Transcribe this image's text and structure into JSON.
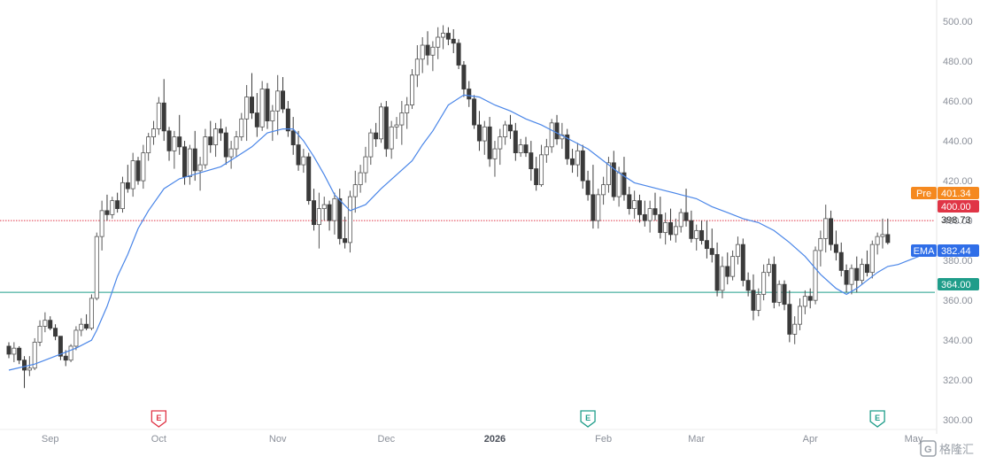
{
  "chart_data": {
    "type": "candlestick",
    "title": "",
    "xlabel": "",
    "ylabel": "",
    "ylim": [
      293,
      508
    ],
    "y_ticks": [
      300,
      320,
      340,
      360,
      380,
      400,
      420,
      440,
      460,
      480,
      500
    ],
    "y_tick_labels": [
      "300.00",
      "320.00",
      "340.00",
      "360.00",
      "380.00",
      "400.00",
      "420.00",
      "440.00",
      "460.00",
      "480.00",
      "500.00"
    ],
    "x_labels": [
      {
        "label": "Sep",
        "index": 8,
        "bold": false
      },
      {
        "label": "Oct",
        "index": 29,
        "bold": false
      },
      {
        "label": "Nov",
        "index": 52,
        "bold": false
      },
      {
        "label": "Dec",
        "index": 73,
        "bold": false
      },
      {
        "label": "2026",
        "index": 94,
        "bold": true
      },
      {
        "label": "Feb",
        "index": 115,
        "bold": false
      },
      {
        "label": "Mar",
        "index": 133,
        "bold": false
      },
      {
        "label": "Apr",
        "index": 155,
        "bold": false
      },
      {
        "label": "May",
        "index": 175,
        "bold": false
      }
    ],
    "candles": [
      [
        337,
        339,
        331,
        333
      ],
      [
        333,
        339,
        329,
        336
      ],
      [
        336,
        337,
        328,
        330
      ],
      [
        330,
        332,
        316,
        325
      ],
      [
        325,
        332,
        322,
        326
      ],
      [
        326,
        341,
        325,
        339
      ],
      [
        339,
        350,
        337,
        347
      ],
      [
        347,
        354,
        344,
        350
      ],
      [
        350,
        352,
        345,
        346
      ],
      [
        346,
        348,
        340,
        342
      ],
      [
        342,
        342,
        330,
        332
      ],
      [
        332,
        335,
        327,
        330
      ],
      [
        330,
        338,
        329,
        337
      ],
      [
        337,
        347,
        335,
        345
      ],
      [
        345,
        351,
        342,
        348
      ],
      [
        348,
        353,
        345,
        346
      ],
      [
        346,
        363,
        345,
        361
      ],
      [
        361,
        394,
        360,
        392
      ],
      [
        392,
        410,
        385,
        405
      ],
      [
        405,
        413,
        400,
        403
      ],
      [
        403,
        412,
        401,
        410
      ],
      [
        410,
        414,
        404,
        406
      ],
      [
        406,
        422,
        404,
        419
      ],
      [
        419,
        428,
        414,
        416
      ],
      [
        416,
        434,
        412,
        430
      ],
      [
        430,
        432,
        418,
        420
      ],
      [
        420,
        438,
        416,
        434
      ],
      [
        434,
        444,
        430,
        442
      ],
      [
        442,
        450,
        438,
        446
      ],
      [
        446,
        462,
        443,
        459
      ],
      [
        459,
        471,
        440,
        445
      ],
      [
        445,
        447,
        430,
        435
      ],
      [
        435,
        445,
        426,
        442
      ],
      [
        442,
        453,
        433,
        437
      ],
      [
        437,
        440,
        418,
        422
      ],
      [
        422,
        438,
        418,
        436
      ],
      [
        436,
        445,
        420,
        425
      ],
      [
        425,
        432,
        415,
        428
      ],
      [
        428,
        446,
        426,
        442
      ],
      [
        442,
        450,
        434,
        438
      ],
      [
        438,
        449,
        432,
        446
      ],
      [
        446,
        451,
        440,
        444
      ],
      [
        444,
        447,
        428,
        432
      ],
      [
        432,
        440,
        426,
        436
      ],
      [
        436,
        445,
        432,
        442
      ],
      [
        442,
        454,
        440,
        451
      ],
      [
        451,
        468,
        440,
        462
      ],
      [
        462,
        474,
        451,
        454
      ],
      [
        454,
        464,
        442,
        447
      ],
      [
        447,
        470,
        445,
        466
      ],
      [
        466,
        469,
        446,
        450
      ],
      [
        450,
        458,
        440,
        455
      ],
      [
        455,
        473,
        443,
        465
      ],
      [
        465,
        472,
        454,
        456
      ],
      [
        456,
        460,
        442,
        445
      ],
      [
        445,
        452,
        433,
        438
      ],
      [
        438,
        445,
        425,
        428
      ],
      [
        428,
        436,
        424,
        432
      ],
      [
        432,
        434,
        408,
        410
      ],
      [
        410,
        416,
        395,
        398
      ],
      [
        398,
        414,
        386,
        406
      ],
      [
        406,
        412,
        400,
        408
      ],
      [
        408,
        410,
        395,
        400
      ],
      [
        400,
        414,
        393,
        411
      ],
      [
        411,
        416,
        388,
        391
      ],
      [
        391,
        402,
        386,
        389
      ],
      [
        389,
        415,
        384,
        412
      ],
      [
        412,
        425,
        404,
        418
      ],
      [
        418,
        428,
        414,
        424
      ],
      [
        424,
        437,
        419,
        432
      ],
      [
        432,
        446,
        428,
        444
      ],
      [
        444,
        449,
        437,
        441
      ],
      [
        441,
        459,
        439,
        457
      ],
      [
        457,
        460,
        432,
        436
      ],
      [
        436,
        450,
        431,
        447
      ],
      [
        447,
        452,
        441,
        448
      ],
      [
        448,
        460,
        438,
        454
      ],
      [
        454,
        462,
        446,
        458
      ],
      [
        458,
        476,
        456,
        473
      ],
      [
        473,
        488,
        467,
        481
      ],
      [
        481,
        492,
        474,
        488
      ],
      [
        488,
        495,
        478,
        483
      ],
      [
        483,
        490,
        475,
        487
      ],
      [
        487,
        497,
        481,
        492
      ],
      [
        492,
        498,
        486,
        494
      ],
      [
        494,
        497,
        488,
        491
      ],
      [
        491,
        496,
        484,
        489
      ],
      [
        489,
        491,
        476,
        478
      ],
      [
        478,
        480,
        462,
        466
      ],
      [
        466,
        470,
        457,
        461
      ],
      [
        461,
        463,
        446,
        448
      ],
      [
        448,
        455,
        435,
        440
      ],
      [
        440,
        450,
        433,
        447
      ],
      [
        447,
        452,
        427,
        431
      ],
      [
        431,
        440,
        422,
        436
      ],
      [
        436,
        446,
        428,
        442
      ],
      [
        442,
        450,
        438,
        448
      ],
      [
        448,
        453,
        441,
        445
      ],
      [
        445,
        449,
        430,
        434
      ],
      [
        434,
        441,
        432,
        438
      ],
      [
        438,
        442,
        432,
        434
      ],
      [
        434,
        440,
        420,
        426
      ],
      [
        426,
        432,
        415,
        418
      ],
      [
        418,
        438,
        417,
        433
      ],
      [
        433,
        441,
        429,
        437
      ],
      [
        437,
        451,
        434,
        449
      ],
      [
        449,
        453,
        438,
        441
      ],
      [
        441,
        449,
        436,
        443
      ],
      [
        443,
        446,
        428,
        431
      ],
      [
        431,
        436,
        424,
        428
      ],
      [
        428,
        439,
        422,
        435
      ],
      [
        435,
        438,
        416,
        420
      ],
      [
        420,
        425,
        410,
        413
      ],
      [
        413,
        428,
        396,
        400
      ],
      [
        400,
        416,
        396,
        413
      ],
      [
        413,
        422,
        408,
        418
      ],
      [
        418,
        432,
        414,
        429
      ],
      [
        429,
        435,
        410,
        412
      ],
      [
        412,
        427,
        407,
        424
      ],
      [
        424,
        432,
        410,
        413
      ],
      [
        413,
        417,
        403,
        406
      ],
      [
        406,
        415,
        401,
        410
      ],
      [
        410,
        413,
        399,
        403
      ],
      [
        403,
        410,
        397,
        400
      ],
      [
        400,
        410,
        394,
        406
      ],
      [
        406,
        414,
        400,
        403
      ],
      [
        403,
        412,
        391,
        394
      ],
      [
        394,
        404,
        388,
        399
      ],
      [
        399,
        406,
        390,
        393
      ],
      [
        393,
        401,
        389,
        397
      ],
      [
        397,
        406,
        394,
        404
      ],
      [
        404,
        416,
        397,
        400
      ],
      [
        400,
        405,
        389,
        391
      ],
      [
        391,
        398,
        385,
        395
      ],
      [
        395,
        400,
        388,
        390
      ],
      [
        390,
        400,
        381,
        386
      ],
      [
        386,
        396,
        379,
        383
      ],
      [
        383,
        389,
        362,
        365
      ],
      [
        365,
        382,
        361,
        377
      ],
      [
        377,
        384,
        368,
        372
      ],
      [
        372,
        385,
        370,
        382
      ],
      [
        382,
        392,
        378,
        388
      ],
      [
        388,
        391,
        367,
        370
      ],
      [
        370,
        374,
        362,
        365
      ],
      [
        365,
        373,
        350,
        355
      ],
      [
        355,
        366,
        352,
        363
      ],
      [
        363,
        378,
        360,
        374
      ],
      [
        374,
        381,
        372,
        378
      ],
      [
        378,
        382,
        356,
        359
      ],
      [
        359,
        370,
        357,
        368
      ],
      [
        368,
        370,
        355,
        358
      ],
      [
        358,
        365,
        339,
        343
      ],
      [
        343,
        352,
        338,
        348
      ],
      [
        348,
        361,
        345,
        357
      ],
      [
        357,
        365,
        353,
        362
      ],
      [
        362,
        366,
        356,
        360
      ],
      [
        360,
        387,
        358,
        385
      ],
      [
        385,
        395,
        377,
        391
      ],
      [
        391,
        408,
        384,
        401
      ],
      [
        401,
        405,
        385,
        388
      ],
      [
        388,
        395,
        380,
        384
      ],
      [
        384,
        389,
        372,
        375
      ],
      [
        375,
        378,
        364,
        368
      ],
      [
        368,
        378,
        363,
        376
      ],
      [
        376,
        382,
        364,
        370
      ],
      [
        370,
        381,
        368,
        378
      ],
      [
        378,
        385,
        372,
        374
      ],
      [
        374,
        390,
        371,
        388
      ],
      [
        388,
        394,
        383,
        392
      ],
      [
        392,
        401,
        386,
        393
      ],
      [
        393,
        401,
        388,
        389
      ]
    ],
    "ema": [
      [
        0,
        325
      ],
      [
        5,
        328
      ],
      [
        9,
        332
      ],
      [
        13,
        336
      ],
      [
        16,
        340
      ],
      [
        17,
        345
      ],
      [
        19,
        357
      ],
      [
        21,
        372
      ],
      [
        23,
        383
      ],
      [
        25,
        396
      ],
      [
        27,
        405
      ],
      [
        30,
        416
      ],
      [
        33,
        421
      ],
      [
        37,
        424
      ],
      [
        41,
        427
      ],
      [
        44,
        432
      ],
      [
        47,
        437
      ],
      [
        50,
        444
      ],
      [
        53,
        446
      ],
      [
        55,
        446
      ],
      [
        57,
        440
      ],
      [
        59,
        432
      ],
      [
        61,
        423
      ],
      [
        63,
        413
      ],
      [
        66,
        405
      ],
      [
        69,
        408
      ],
      [
        72,
        416
      ],
      [
        75,
        423
      ],
      [
        78,
        430
      ],
      [
        80,
        438
      ],
      [
        82,
        445
      ],
      [
        85,
        458
      ],
      [
        88,
        463
      ],
      [
        91,
        462
      ],
      [
        94,
        458
      ],
      [
        97,
        455
      ],
      [
        100,
        451
      ],
      [
        103,
        448
      ],
      [
        106,
        444
      ],
      [
        109,
        440
      ],
      [
        112,
        436
      ],
      [
        115,
        430
      ],
      [
        118,
        424
      ],
      [
        121,
        419
      ],
      [
        124,
        417
      ],
      [
        127,
        415
      ],
      [
        130,
        413
      ],
      [
        133,
        411
      ],
      [
        136,
        407
      ],
      [
        139,
        404
      ],
      [
        142,
        401
      ],
      [
        145,
        399
      ],
      [
        148,
        395
      ],
      [
        151,
        389
      ],
      [
        154,
        382
      ],
      [
        157,
        373
      ],
      [
        160,
        366
      ],
      [
        162,
        363
      ],
      [
        164,
        366
      ],
      [
        166,
        370
      ],
      [
        168,
        374
      ],
      [
        170,
        377
      ],
      [
        172,
        378
      ],
      [
        174,
        380
      ],
      [
        176,
        382
      ]
    ],
    "price_lines": [
      {
        "value": 400.0,
        "label": "400.00",
        "color": "#e03546",
        "style": "dotted"
      },
      {
        "value": 364.0,
        "label": "364.00",
        "color": "#1f9d8a",
        "style": "solid"
      }
    ],
    "price_tags": [
      {
        "name": "Pre",
        "value": 401.34,
        "label": "401.34",
        "color": "#f5891f"
      },
      {
        "name": "",
        "value": 400.0,
        "label": "400.00",
        "color": "#e03546"
      },
      {
        "name": "",
        "value": 398.73,
        "label": "398.73",
        "color": ""
      },
      {
        "name": "EMA",
        "value": 382.44,
        "label": "382.44",
        "color": "#2f6ee8"
      },
      {
        "name": "",
        "value": 364.0,
        "label": "364.00",
        "color": "#1f9d8a"
      }
    ],
    "earnings_markers": [
      {
        "letter": "E",
        "index": 29,
        "color": "#e03546"
      },
      {
        "letter": "E",
        "index": 112,
        "color": "#1f9d8a"
      },
      {
        "letter": "E",
        "index": 168,
        "color": "#1f9d8a"
      }
    ],
    "colors": {
      "ema": "#4a86e8",
      "candle_up_border": "#555555",
      "candle_down": "#3a3a3a",
      "grid": "#eeeeee"
    }
  },
  "watermark": {
    "text": "格隆汇"
  }
}
